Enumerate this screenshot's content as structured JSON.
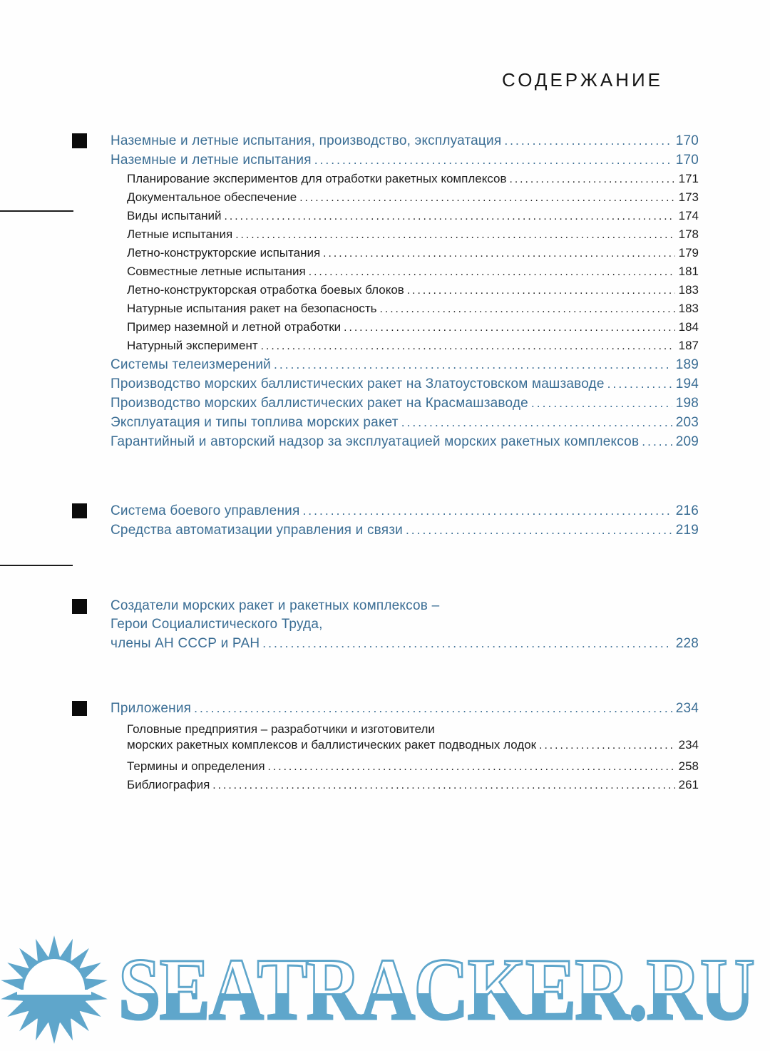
{
  "page": {
    "title": "СОДЕРЖАНИЕ"
  },
  "colors": {
    "header_blue": "#3a6d94",
    "body_black": "#1d1d1d",
    "watermark_blue": "#5fa6cb"
  },
  "watermark": {
    "text": "SEATRACKER.RU",
    "logo": "sun-over-sea-logo"
  },
  "toc": {
    "blocks": [
      {
        "rows": [
          {
            "text": "Наземные и летные испытания, производство, эксплуатация",
            "page": "170"
          },
          {
            "text": "Наземные и летные испытания",
            "page": "170"
          },
          {
            "text": "Планирование экспериментов для отработки ракетных комплексов",
            "page": "171"
          },
          {
            "text": "Документальное обеспечение",
            "page": "173"
          },
          {
            "text": "Виды испытаний",
            "page": "174"
          },
          {
            "text": "Летные испытания",
            "page": "178"
          },
          {
            "text": "Летно-конструкторские испытания",
            "page": "179"
          },
          {
            "text": "Совместные летные испытания",
            "page": "181"
          },
          {
            "text": "Летно-конструкторская отработка боевых блоков",
            "page": "183"
          },
          {
            "text": "Натурные испытания ракет на безопасность",
            "page": "183"
          },
          {
            "text": "Пример наземной и летной отработки",
            "page": "184"
          },
          {
            "text": "Натурный эксперимент",
            "page": "187"
          },
          {
            "text": "Системы телеизмерений",
            "page": "189"
          },
          {
            "text": "Производство морских баллистических ракет на Златоустовском машзаводе",
            "page": "194"
          },
          {
            "text": "Производство морских баллистических ракет на Красмашзаводе",
            "page": "198"
          },
          {
            "text": "Эксплуатация и типы топлива морских ракет",
            "page": "203"
          },
          {
            "text": "Гарантийный и авторский надзор за эксплуатацией морских ракетных комплексов",
            "page": "209"
          }
        ]
      },
      {
        "rows": [
          {
            "text": "Система боевого управления",
            "page": "216"
          },
          {
            "text": "Средства автоматизации управления и связи",
            "page": "219"
          }
        ]
      },
      {
        "rows": [
          {
            "text": "Создатели морских ракет и ракетных комплексов –",
            "page": ""
          },
          {
            "text": "Герои Социалистического Труда,",
            "page": ""
          },
          {
            "text": "члены АН СССР и РАН",
            "page": "228"
          }
        ]
      },
      {
        "rows": [
          {
            "text": "Приложения",
            "page": "234"
          },
          {
            "text": "Головные предприятия – разработчики и изготовители",
            "page": ""
          },
          {
            "text": "морских ракетных комплексов и баллистических ракет подводных лодок",
            "page": "234"
          },
          {
            "text": "Термины и определения",
            "page": "258"
          },
          {
            "text": "Библиография",
            "page": "261"
          }
        ]
      }
    ]
  }
}
